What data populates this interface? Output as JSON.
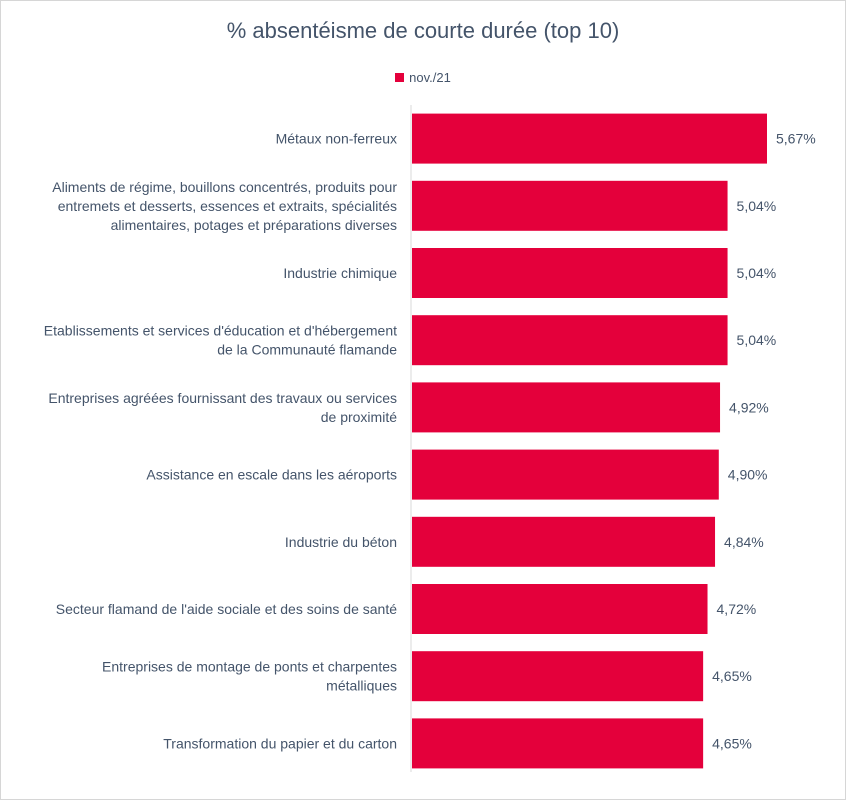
{
  "chart_data": {
    "type": "bar",
    "orientation": "horizontal",
    "title": "% absentéisme de courte durée (top 10)",
    "legend": "top-center",
    "series": [
      {
        "name": "nov./21",
        "color": "#e4003b",
        "values": [
          5.67,
          5.04,
          5.04,
          5.04,
          4.92,
          4.9,
          4.84,
          4.72,
          4.65,
          4.65
        ],
        "value_labels": [
          "5,67%",
          "5,04%",
          "5,04%",
          "5,04%",
          "4,92%",
          "4,90%",
          "4,84%",
          "4,72%",
          "4,65%",
          "4,65%"
        ]
      }
    ],
    "categories": [
      [
        "Métaux non-ferreux"
      ],
      [
        "Aliments de régime, bouillons concentrés, produits pour",
        "entremets et desserts, essences et extraits, spécialités",
        "alimentaires, potages et préparations diverses"
      ],
      [
        "Industrie chimique"
      ],
      [
        "Etablissements et services d'éducation et d'hébergement",
        "de la Communauté flamande"
      ],
      [
        "Entreprises agréées fournissant des travaux ou services",
        "de proximité"
      ],
      [
        "Assistance en escale dans les aéroports"
      ],
      [
        "Industrie du béton"
      ],
      [
        "Secteur flamand de l'aide sociale et des soins de santé"
      ],
      [
        "Entreprises de montage de ponts et charpentes",
        "métalliques"
      ],
      [
        "Transformation du papier et du carton"
      ]
    ],
    "grid": false,
    "axis_line_color": "#d9d9d9"
  }
}
